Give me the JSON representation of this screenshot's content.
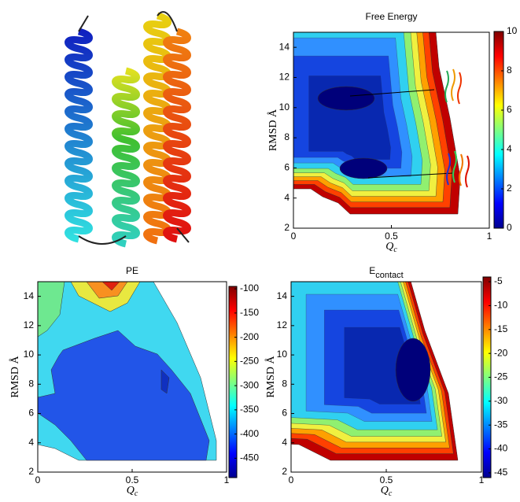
{
  "chart_data": [
    {
      "type": "contour",
      "title": "Free Energy",
      "xlabel": "Q",
      "xlabel_sub": "c",
      "ylabel": "RMSD Å",
      "xlim": [
        0,
        1
      ],
      "xticks": [
        0,
        0.5,
        1
      ],
      "ylim": [
        2,
        15
      ],
      "yticks": [
        2,
        4,
        6,
        8,
        10,
        12,
        14
      ],
      "clim": [
        0,
        10
      ],
      "cticks": [
        0,
        2,
        4,
        6,
        8,
        10
      ],
      "colormap": "jet"
    },
    {
      "type": "contour",
      "title": "PE",
      "xlabel": "Q",
      "xlabel_sub": "c",
      "ylabel": "RMSD Å",
      "xlim": [
        0,
        1
      ],
      "xticks": [
        0,
        0.5,
        1
      ],
      "ylim": [
        2,
        15
      ],
      "yticks": [
        2,
        4,
        6,
        8,
        10,
        12,
        14
      ],
      "clim": [
        -490,
        -95
      ],
      "cticks": [
        -100,
        -150,
        -200,
        -250,
        -300,
        -350,
        -400,
        -450
      ],
      "colormap": "jet"
    },
    {
      "type": "contour",
      "title": "E",
      "title_sub": "contact",
      "xlabel": "Q",
      "xlabel_sub": "c",
      "ylabel": "RMSD Å",
      "xlim": [
        0,
        1
      ],
      "xticks": [
        0,
        0.5,
        1
      ],
      "ylim": [
        2,
        15
      ],
      "yticks": [
        2,
        4,
        6,
        8,
        10,
        12,
        14
      ],
      "clim": [
        -46,
        -4
      ],
      "cticks": [
        -5,
        -10,
        -15,
        -20,
        -25,
        -30,
        -35,
        -40,
        -45
      ],
      "colormap": "jet"
    }
  ]
}
